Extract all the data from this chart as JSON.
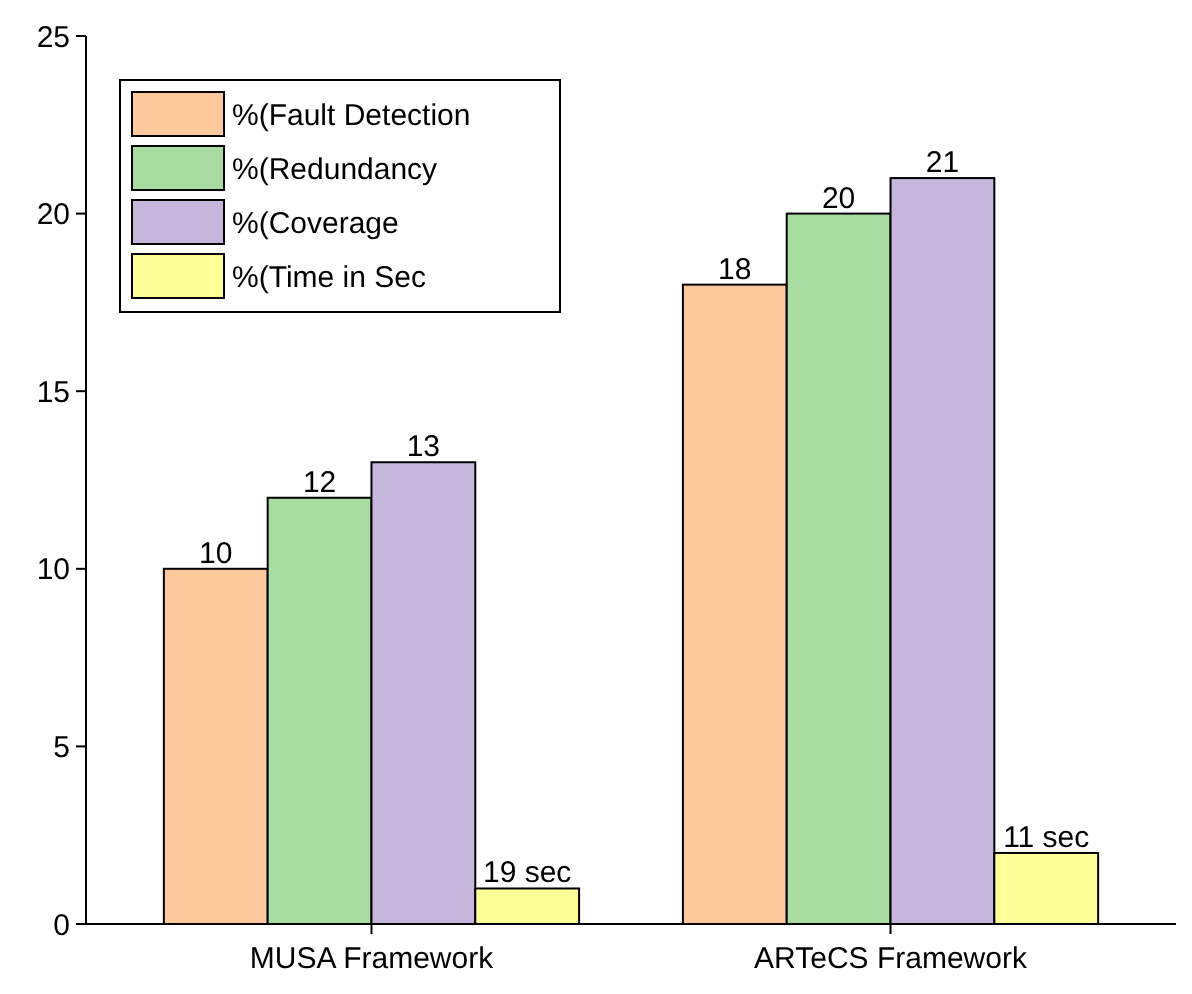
{
  "chart_data": {
    "type": "bar",
    "categories": [
      "MUSA Framework",
      "ARTeCS Framework"
    ],
    "series": [
      {
        "name": "%(Fault Detection",
        "color": "#fdc99c",
        "values": [
          10,
          18
        ],
        "value_labels": [
          "10",
          "18"
        ]
      },
      {
        "name": "%(Redundancy",
        "color": "#a9dca1",
        "values": [
          12,
          20
        ],
        "value_labels": [
          "12",
          "20"
        ]
      },
      {
        "name": "%(Coverage",
        "color": "#c7b6dc",
        "values": [
          13,
          21
        ],
        "value_labels": [
          "13",
          "21"
        ]
      },
      {
        "name": "%(Time in Sec",
        "color": "#ffff99",
        "values": [
          1,
          2
        ]
      }
    ],
    "annotations": [
      "19 sec",
      "11 sec"
    ],
    "ylim": [
      0,
      25
    ],
    "yticks": [
      0,
      5,
      10,
      15,
      20,
      25
    ],
    "legend": "top left",
    "grid": false
  }
}
